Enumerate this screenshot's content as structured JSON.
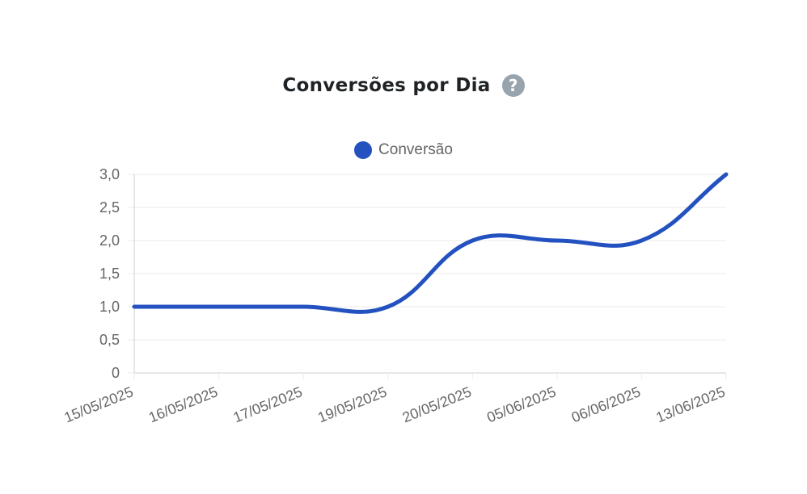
{
  "title": "Conversões por Dia",
  "help_icon": "?",
  "chart_data": {
    "type": "line",
    "title": "Conversões por Dia",
    "categories": [
      "15/05/2025",
      "16/05/2025",
      "17/05/2025",
      "19/05/2025",
      "20/05/2025",
      "05/06/2025",
      "06/06/2025",
      "13/06/2025"
    ],
    "series": [
      {
        "name": "Conversão",
        "values": [
          1,
          1,
          1,
          1,
          2,
          2,
          2,
          3
        ],
        "color": "#2352c0"
      }
    ],
    "ylim": [
      0,
      3
    ],
    "yticks": [
      "0",
      "0,5",
      "1,0",
      "1,5",
      "2,0",
      "2,5",
      "3,0"
    ],
    "legend": "top",
    "grid": true,
    "xlabel": "",
    "ylabel": ""
  }
}
